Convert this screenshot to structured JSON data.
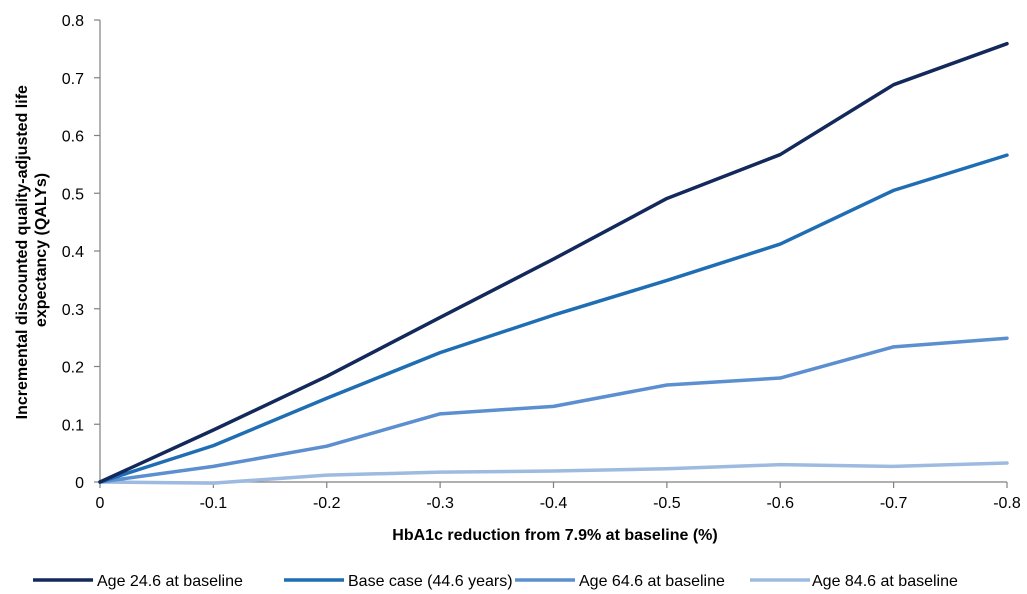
{
  "chart_data": {
    "type": "line",
    "title": "",
    "xlabel": "HbA1c reduction from 7.9% at baseline (%)",
    "ylabel": "Incremental discounted quality-adjusted life expectancy (QALYs)",
    "ylabel_lines": [
      "Incremental discounted quality-adjusted life",
      "expectancy (QALYs)"
    ],
    "x": [
      0,
      -0.1,
      -0.2,
      -0.3,
      -0.4,
      -0.5,
      -0.6,
      -0.7,
      -0.8
    ],
    "x_tick_labels": [
      "0",
      "-0.1",
      "-0.2",
      "-0.3",
      "-0.4",
      "-0.5",
      "-0.6",
      "-0.7",
      "-0.8"
    ],
    "ylim": [
      0,
      0.8
    ],
    "y_ticks": [
      0,
      0.1,
      0.2,
      0.3,
      0.4,
      0.5,
      0.6,
      0.7,
      0.8
    ],
    "y_tick_labels": [
      "0",
      "0.1",
      "0.2",
      "0.3",
      "0.4",
      "0.5",
      "0.6",
      "0.7",
      "0.8"
    ],
    "grid": false,
    "legend_position": "bottom",
    "series": [
      {
        "name": "Age 24.6 at baseline",
        "color": "#13295b",
        "values": [
          0,
          0.09,
          0.183,
          0.285,
          0.386,
          0.491,
          0.567,
          0.688,
          0.759
        ]
      },
      {
        "name": "Base case (44.6 years)",
        "color": "#1f6db3",
        "values": [
          0,
          0.063,
          0.145,
          0.224,
          0.289,
          0.349,
          0.412,
          0.505,
          0.566
        ]
      },
      {
        "name": "Age 64.6 at baseline",
        "color": "#5b8fcf",
        "values": [
          0,
          0.027,
          0.062,
          0.118,
          0.131,
          0.168,
          0.18,
          0.234,
          0.249
        ]
      },
      {
        "name": "Age 84.6 at baseline",
        "color": "#9dbbe0",
        "values": [
          0,
          -0.002,
          0.012,
          0.017,
          0.019,
          0.023,
          0.03,
          0.027,
          0.033
        ]
      }
    ]
  }
}
